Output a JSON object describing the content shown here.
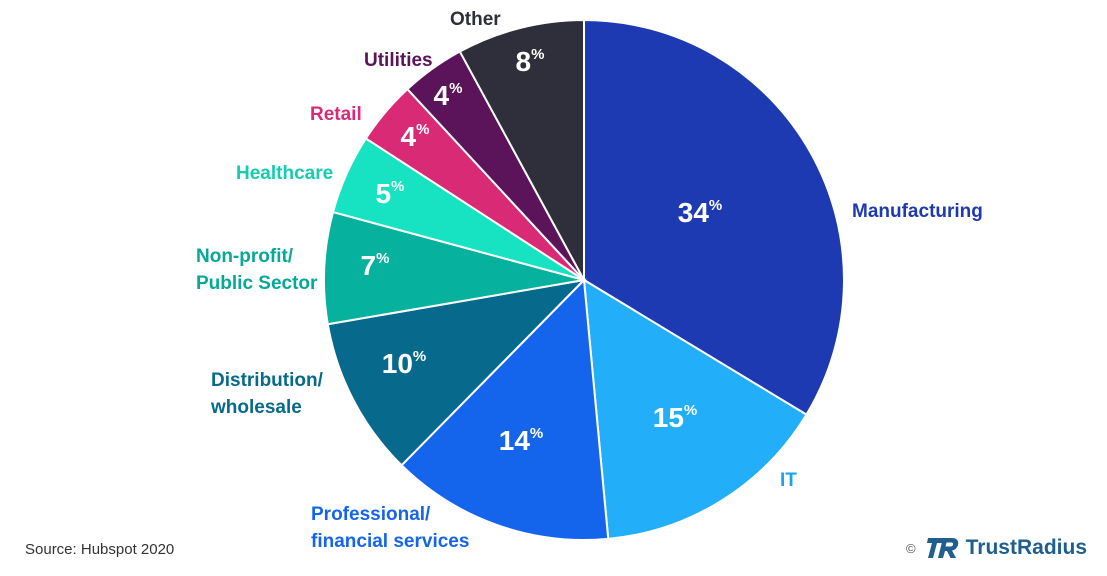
{
  "chart_data": {
    "type": "pie",
    "title": "",
    "slices": [
      {
        "label": "Manufacturing",
        "value": 34,
        "value_text": "34",
        "color": "#1e3ab3",
        "label_color": "#1e3ab3"
      },
      {
        "label": "IT",
        "value": 15,
        "value_text": "15",
        "color": "#22aef8",
        "label_color": "#1aa3ee"
      },
      {
        "label": "Professional/\nfinancial services",
        "value": 14,
        "value_text": "14",
        "color": "#1565ec",
        "label_color": "#1565ec"
      },
      {
        "label": "Distribution/\nwholesale",
        "value": 10,
        "value_text": "10",
        "color": "#076a8c",
        "label_color": "#076a8c"
      },
      {
        "label": "Non-profit/\nPublic Sector",
        "value": 7,
        "value_text": "7",
        "color": "#06b29e",
        "label_color": "#06a996"
      },
      {
        "label": "Healthcare",
        "value": 5,
        "value_text": "5",
        "color": "#17e2c2",
        "label_color": "#13cdb0"
      },
      {
        "label": "Retail",
        "value": 4,
        "value_text": "4",
        "color": "#d92a76",
        "label_color": "#d92a76"
      },
      {
        "label": "Utilities",
        "value": 4,
        "value_text": "4",
        "color": "#5b1459",
        "label_color": "#5b1459"
      },
      {
        "label": "Other",
        "value": 8,
        "value_text": "8",
        "color": "#2e2f3a",
        "label_color": "#2e2f3a"
      }
    ],
    "percent_sign": "%",
    "start_position": "top",
    "direction": "clockwise"
  },
  "footer": {
    "source": "Source: Hubspot 2020",
    "copyright": "©",
    "brand_name": "TrustRadius",
    "brand_color": "#1f5f8f"
  },
  "label_colors": {
    "Manufacturing": "#1e3ab3"
  }
}
